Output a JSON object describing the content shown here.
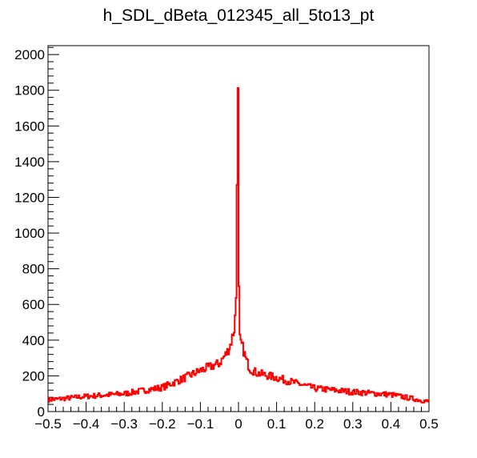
{
  "chart_data": {
    "type": "line",
    "title": "h_SDL_dBeta_012345_all_5to13_pt",
    "xlabel": "",
    "ylabel": "",
    "xlim": [
      -0.5,
      0.5
    ],
    "ylim": [
      0,
      2050
    ],
    "x_ticks": [
      -0.5,
      -0.4,
      -0.3,
      -0.2,
      -0.1,
      0,
      0.1,
      0.2,
      0.3,
      0.4,
      0.5
    ],
    "x_tick_labels": [
      "−0.5",
      "−0.4",
      "−0.3",
      "−0.2",
      "−0.1",
      "0",
      "0.1",
      "0.2",
      "0.3",
      "0.4",
      "0.5"
    ],
    "y_ticks": [
      0,
      200,
      400,
      600,
      800,
      1000,
      1200,
      1400,
      1600,
      1800,
      2000
    ],
    "y_tick_labels": [
      "0",
      "200",
      "400",
      "600",
      "800",
      "1000",
      "1200",
      "1400",
      "1600",
      "1800",
      "2000"
    ],
    "grid": false,
    "series": [
      {
        "color": "#ff0000",
        "x": [
          -0.5,
          -0.4,
          -0.3,
          -0.2,
          -0.15,
          -0.1,
          -0.05,
          -0.03,
          -0.02,
          -0.015,
          -0.01,
          -0.005,
          -0.004,
          -0.003,
          -0.002,
          -0.001,
          0.0,
          0.001,
          0.002,
          0.003,
          0.005,
          0.01,
          0.015,
          0.02,
          0.03,
          0.05,
          0.1,
          0.15,
          0.2,
          0.3,
          0.4,
          0.5
        ],
        "y": [
          65,
          85,
          100,
          135,
          180,
          230,
          270,
          330,
          380,
          430,
          470,
          700,
          1110,
          1950,
          1945,
          1720,
          1250,
          700,
          600,
          420,
          380,
          370,
          330,
          290,
          240,
          215,
          190,
          160,
          130,
          110,
          95,
          55
        ]
      }
    ]
  }
}
